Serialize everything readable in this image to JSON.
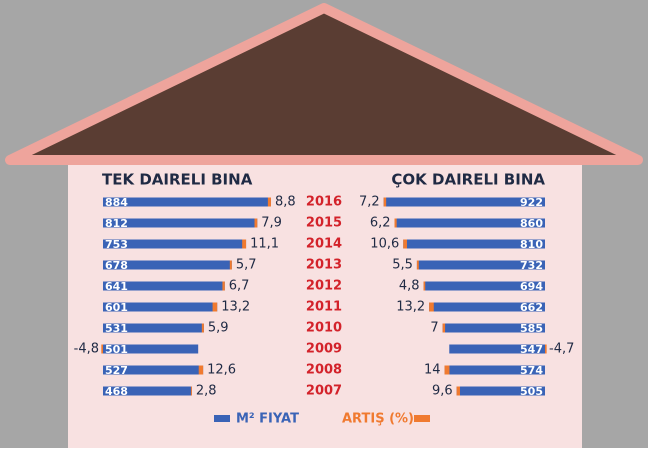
{
  "chart_data": {
    "type": "butterfly-bar",
    "categories": [
      "2016",
      "2015",
      "2014",
      "2013",
      "2012",
      "2011",
      "2010",
      "2009",
      "2008",
      "2007"
    ],
    "legend": [
      {
        "name": "M² FIYAT",
        "color": "#3a63b6"
      },
      {
        "name": "ARTIŞ (%)",
        "color": "#f07a30"
      }
    ],
    "panels": [
      {
        "title": "TEK DAIRELI BINA",
        "series": [
          {
            "values": [
              884,
              812,
              753,
              678,
              641,
              601,
              531,
              501,
              527,
              468
            ]
          },
          {
            "values": [
              8.8,
              7.9,
              11.1,
              5.7,
              6.7,
              13.2,
              5.9,
              -4.8,
              12.6,
              2.8
            ],
            "value_labels": [
              "8,8",
              "7,9",
              "11,1",
              "5,7",
              "6,7",
              "13,2",
              "5,9",
              "-4,8",
              "12,6",
              "2,8"
            ]
          }
        ]
      },
      {
        "title": "ÇOK DAIRELI BINA",
        "series": [
          {
            "values": [
              922,
              860,
              810,
              732,
              694,
              662,
              585,
              547,
              574,
              505
            ]
          },
          {
            "values": [
              7.2,
              6.2,
              10.6,
              5.5,
              4.8,
              13.2,
              7,
              -4.7,
              14,
              9.6
            ],
            "value_labels": [
              "7,2",
              "6,2",
              "10,6",
              "5,5",
              "4,8",
              "13,2",
              "7",
              "-4,7",
              "14",
              "9,6"
            ]
          }
        ]
      }
    ]
  }
}
